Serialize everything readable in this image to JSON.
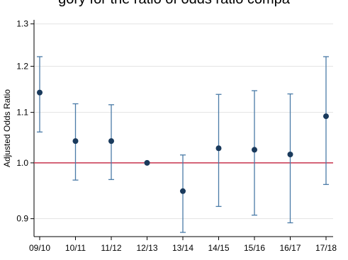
{
  "caption_fragment": "gory for the ratio of odds ratio compa",
  "chart_data": {
    "type": "scatter",
    "ylabel": "Adjusted Odds Ratio",
    "xlabel": "",
    "categories": [
      "09/10",
      "10/11",
      "11/12",
      "12/13",
      "13/14",
      "14/15",
      "15/16",
      "16/17",
      "17/18"
    ],
    "values": [
      1.142,
      1.042,
      1.042,
      1.0,
      0.948,
      1.028,
      1.025,
      1.016,
      1.092
    ],
    "ci_lower": [
      1.06,
      0.968,
      0.969,
      1.0,
      0.877,
      0.921,
      0.906,
      0.893,
      0.96
    ],
    "ci_upper": [
      1.222,
      1.118,
      1.116,
      1.0,
      1.015,
      1.138,
      1.146,
      1.139,
      1.222
    ],
    "reference_line": 1.0,
    "ylim": [
      0.87,
      1.31
    ],
    "yticks": [
      "0.9",
      "1.0",
      "1.1",
      "1.2",
      "1.3"
    ],
    "ytick_values": [
      0.9,
      1.0,
      1.1,
      1.2,
      1.3
    ],
    "log_scale": true,
    "grid": "horizontal",
    "colors": {
      "marker": "#1a3a5c",
      "errorbar": "#4a7ba7",
      "reference": "#c8344e",
      "grid": "#e3e3e3",
      "axis": "#000000"
    }
  }
}
